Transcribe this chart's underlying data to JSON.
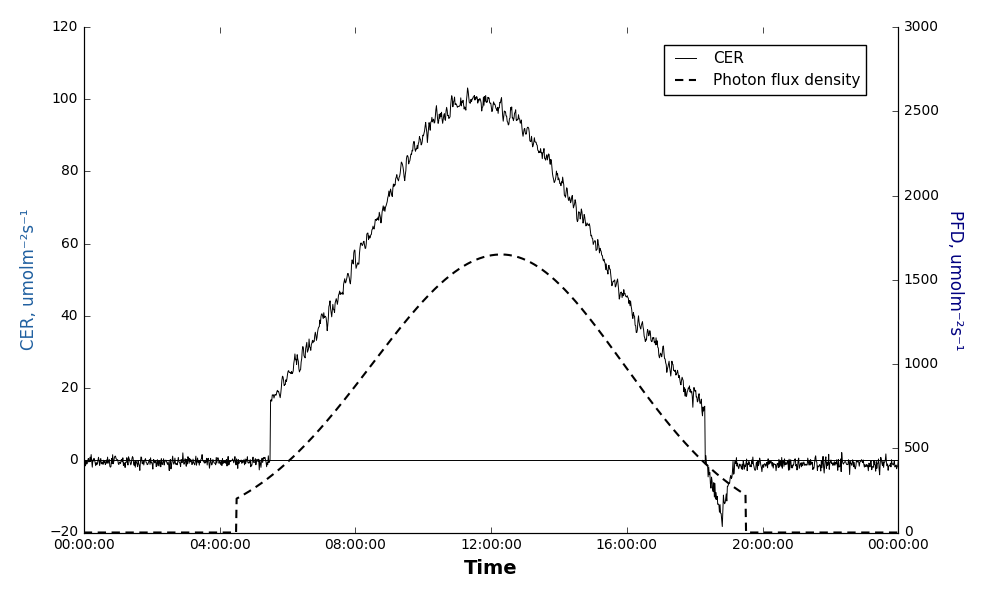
{
  "xlabel": "Time",
  "ylabel_left": "CER, umolm⁻²s⁻¹",
  "ylabel_right": "PFD, umolm⁻²s⁻¹",
  "ylim_left": [
    -20,
    120
  ],
  "ylim_right": [
    0,
    3000
  ],
  "yticks_left": [
    -20,
    0,
    20,
    40,
    60,
    80,
    100,
    120
  ],
  "yticks_right": [
    0,
    500,
    1000,
    1500,
    2000,
    2500,
    3000
  ],
  "xtick_labels": [
    "00:00:00",
    "04:00:00",
    "08:00:00",
    "12:00:00",
    "16:00:00",
    "20:00:00",
    "00:00:00"
  ],
  "cer_color": "#000000",
  "pfd_color": "#000000",
  "legend_labels": [
    "CER",
    "Photon flux density"
  ],
  "background_color": "#ffffff",
  "axis_label_color_left": "#2060a0",
  "axis_label_color_right": "#000080"
}
